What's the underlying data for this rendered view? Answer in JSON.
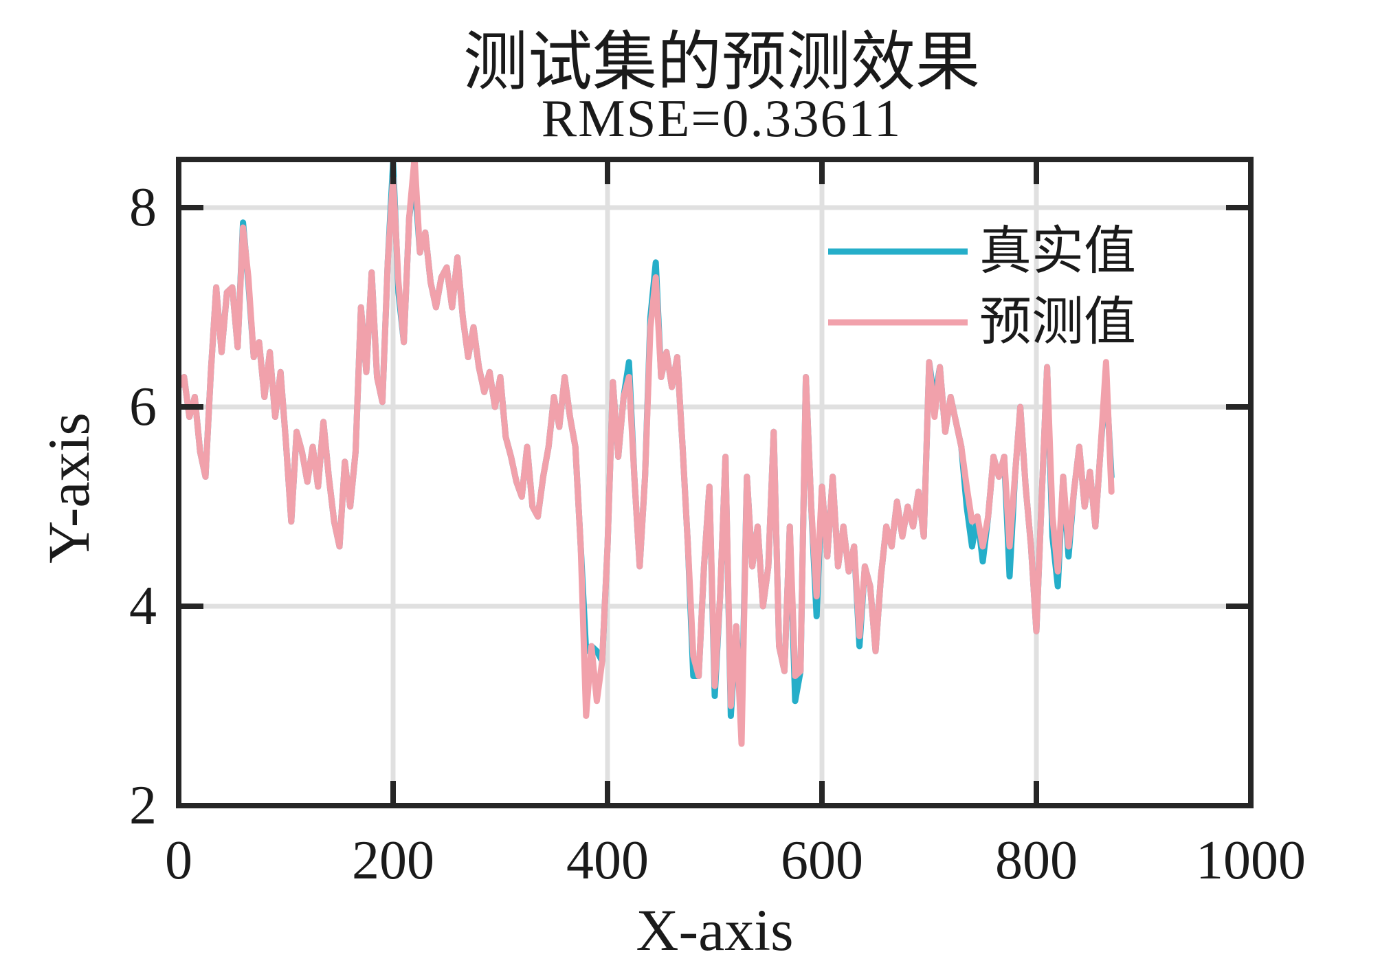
{
  "title": "测试集的预测效果",
  "subtitle": "RMSE=0.33611",
  "xlabel": "X-axis",
  "ylabel": "Y-axis",
  "colors": {
    "true_series": "#25AEC9",
    "pred_series": "#F1A1AB",
    "axis": "#262626",
    "grid": "#E0E0E0",
    "text": "#1A1A1A",
    "background": "#FFFFFF"
  },
  "legend": {
    "position": "upper right",
    "entries": [
      {
        "label": "真实值",
        "color": "#25AEC9"
      },
      {
        "label": "预测值",
        "color": "#F1A1AB"
      }
    ]
  },
  "axes": {
    "xticks": [
      0,
      200,
      400,
      600,
      800,
      1000
    ],
    "yticks": [
      2,
      4,
      6,
      8
    ],
    "grid_x": [
      200,
      400,
      600,
      800
    ],
    "grid_y": [
      4,
      6,
      8
    ]
  },
  "chart_data": {
    "type": "line",
    "title": "测试集的预测效果",
    "subtitle": "RMSE=0.33611",
    "xlabel": "X-axis",
    "ylabel": "Y-axis",
    "xlim": [
      0,
      1000
    ],
    "ylim": [
      2,
      8.483
    ],
    "xticks": [
      0,
      200,
      400,
      600,
      800,
      1000
    ],
    "yticks": [
      2,
      4,
      6,
      8
    ],
    "grid": true,
    "legend_position": "upper right",
    "x_start": 0,
    "x_step": 5,
    "n_points": 175,
    "series": [
      {
        "name": "真实值",
        "color": "#25AEC9",
        "values": [
          6.2,
          6.3,
          5.9,
          6.1,
          5.55,
          5.3,
          6.35,
          7.2,
          6.55,
          7.15,
          7.2,
          6.6,
          7.85,
          7.25,
          6.5,
          6.65,
          6.1,
          6.55,
          5.9,
          6.35,
          5.65,
          4.85,
          5.75,
          5.55,
          5.25,
          5.6,
          5.2,
          5.85,
          5.3,
          4.85,
          4.6,
          5.45,
          5.0,
          5.55,
          7.0,
          6.35,
          7.35,
          6.3,
          6.05,
          7.45,
          8.45,
          7.15,
          6.65,
          7.9,
          8.3,
          7.55,
          7.75,
          7.25,
          7.0,
          7.3,
          7.4,
          7.0,
          7.5,
          6.9,
          6.5,
          6.8,
          6.4,
          6.15,
          6.35,
          6.0,
          6.3,
          5.7,
          5.5,
          5.25,
          5.1,
          5.6,
          5.0,
          4.9,
          5.3,
          5.6,
          6.1,
          5.8,
          6.3,
          5.9,
          5.6,
          4.6,
          3.55,
          3.6,
          3.55,
          3.45,
          4.6,
          6.25,
          5.5,
          6.1,
          6.45,
          5.3,
          4.4,
          5.3,
          6.9,
          7.45,
          6.3,
          6.55,
          6.2,
          6.5,
          5.6,
          4.6,
          3.3,
          3.3,
          4.4,
          5.2,
          3.1,
          4.1,
          5.5,
          2.9,
          3.8,
          2.8,
          5.3,
          4.4,
          4.8,
          4.0,
          4.4,
          5.75,
          3.6,
          3.35,
          4.8,
          3.05,
          3.35,
          6.3,
          5.0,
          3.9,
          5.2,
          4.5,
          5.3,
          4.4,
          4.8,
          4.35,
          4.6,
          3.6,
          4.4,
          4.2,
          3.55,
          4.3,
          4.8,
          4.6,
          5.05,
          4.7,
          5.0,
          4.8,
          5.15,
          4.7,
          6.45,
          6.05,
          6.4,
          5.75,
          6.1,
          5.85,
          5.6,
          5.0,
          4.6,
          4.9,
          4.45,
          4.9,
          5.5,
          5.3,
          5.5,
          4.3,
          5.3,
          6.0,
          5.2,
          4.6,
          3.75,
          5.1,
          6.4,
          4.7,
          4.2,
          5.3,
          4.5,
          5.15,
          5.6,
          5.0,
          5.35,
          4.8,
          5.6,
          6.3,
          5.3
        ]
      },
      {
        "name": "预测值",
        "color": "#F1A1AB",
        "values": [
          6.2,
          6.3,
          5.9,
          6.1,
          5.55,
          5.3,
          6.35,
          7.2,
          6.55,
          7.15,
          7.2,
          6.6,
          7.8,
          7.3,
          6.5,
          6.65,
          6.1,
          6.55,
          5.9,
          6.35,
          5.65,
          4.85,
          5.75,
          5.55,
          5.25,
          5.6,
          5.2,
          5.85,
          5.3,
          4.85,
          4.6,
          5.45,
          5.0,
          5.55,
          7.0,
          6.35,
          7.35,
          6.3,
          6.05,
          7.45,
          8.3,
          7.25,
          6.65,
          7.9,
          8.5,
          7.55,
          7.75,
          7.25,
          7.0,
          7.3,
          7.4,
          7.0,
          7.5,
          6.9,
          6.5,
          6.8,
          6.4,
          6.15,
          6.35,
          6.0,
          6.3,
          5.7,
          5.5,
          5.25,
          5.1,
          5.6,
          5.0,
          4.9,
          5.3,
          5.6,
          6.1,
          5.8,
          6.3,
          5.9,
          5.6,
          4.6,
          2.9,
          3.6,
          3.05,
          3.45,
          4.6,
          6.25,
          5.5,
          6.1,
          6.3,
          5.3,
          4.4,
          5.3,
          6.8,
          7.3,
          6.3,
          6.55,
          6.2,
          6.5,
          5.6,
          4.6,
          3.5,
          3.3,
          4.4,
          5.2,
          3.2,
          4.1,
          5.5,
          3.0,
          3.8,
          2.62,
          5.3,
          4.4,
          4.8,
          4.0,
          4.4,
          5.75,
          3.6,
          3.35,
          4.8,
          3.3,
          3.35,
          6.3,
          5.0,
          4.1,
          5.2,
          4.5,
          5.3,
          4.4,
          4.8,
          4.35,
          4.6,
          3.7,
          4.4,
          4.2,
          3.55,
          4.3,
          4.8,
          4.6,
          5.05,
          4.7,
          5.0,
          4.8,
          5.15,
          4.7,
          6.45,
          5.9,
          6.4,
          5.75,
          6.1,
          5.85,
          5.6,
          5.2,
          4.85,
          4.9,
          4.6,
          4.9,
          5.5,
          5.3,
          5.5,
          4.6,
          5.3,
          6.0,
          5.2,
          4.6,
          3.75,
          5.1,
          6.4,
          4.9,
          4.35,
          5.3,
          4.6,
          5.15,
          5.6,
          5.0,
          5.35,
          4.8,
          5.6,
          6.45,
          5.15
        ]
      }
    ]
  }
}
